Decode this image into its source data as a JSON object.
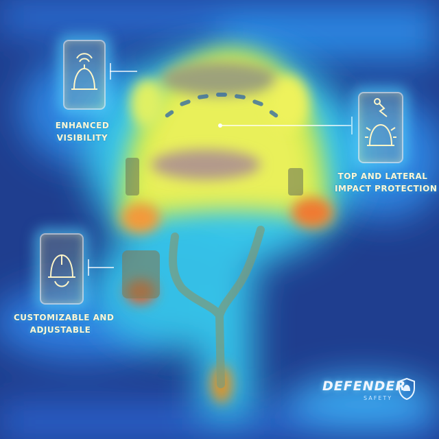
{
  "features": {
    "enhanced_visibility": {
      "line1": "ENHANCED",
      "line2": "VISIBILITY",
      "icon": "helmet-glow-icon"
    },
    "impact_protection": {
      "line1": "TOP AND LATERAL",
      "line2": "IMPACT PROTECTION",
      "icon": "helmet-impact-icon"
    },
    "adjustable": {
      "line1": "CUSTOMIZABLE AND",
      "line2": "ADJUSTABLE",
      "icon": "helmet-adjust-icon"
    }
  },
  "brand": {
    "name": "DEFENDER",
    "tagline": "SAFETY",
    "icon": "shield-icon"
  },
  "colors": {
    "background": "#1f3e8f",
    "glow": "#5adcff",
    "warm": "#f7f05a",
    "hot": "#ff5a1e"
  }
}
